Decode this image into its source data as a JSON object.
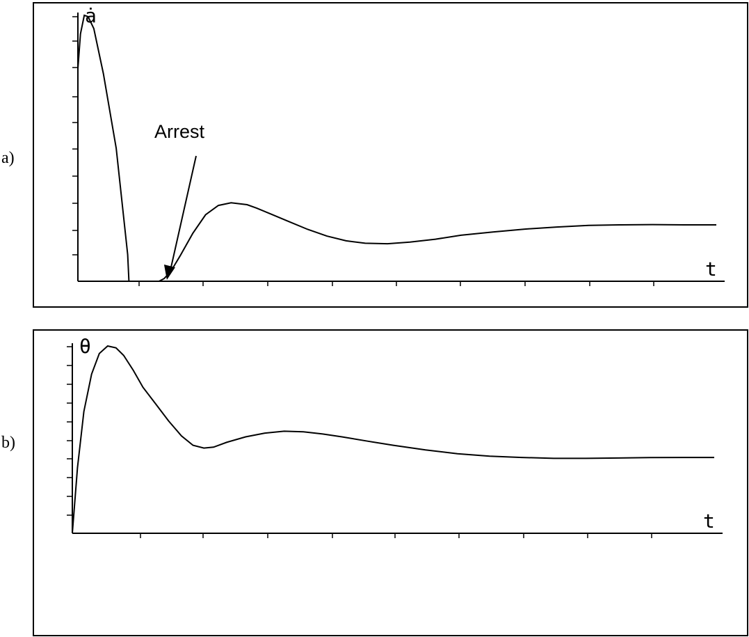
{
  "panels": [
    {
      "label": "a)"
    },
    {
      "label": "b)"
    }
  ],
  "chart_data": [
    {
      "type": "line",
      "ylabel": "ȧ",
      "xlabel": "t",
      "xlim": [
        0,
        10
      ],
      "ylim": [
        0,
        10
      ],
      "annotation": {
        "text": "Arrest",
        "x": 1.35,
        "y": 0
      },
      "series": [
        {
          "x": [
            0,
            0.04,
            0.1,
            0.16,
            0.25,
            0.4,
            0.6,
            0.78,
            0.8,
            1.27,
            1.35,
            1.45,
            1.6,
            1.8,
            2.0,
            2.2,
            2.4,
            2.65,
            2.8,
            3.0,
            3.3,
            3.6,
            3.9,
            4.2,
            4.5,
            4.85,
            5.2,
            5.6,
            6.0,
            6.5,
            7.0,
            7.5,
            8.0,
            8.5,
            9.0,
            9.5,
            10.0
          ],
          "y": [
            8.0,
            9.3,
            10.0,
            9.95,
            9.5,
            7.8,
            5.0,
            1.0,
            0,
            0,
            0.1,
            0.35,
            0.95,
            1.8,
            2.5,
            2.85,
            2.95,
            2.88,
            2.75,
            2.55,
            2.25,
            1.95,
            1.7,
            1.52,
            1.43,
            1.41,
            1.47,
            1.58,
            1.73,
            1.85,
            1.96,
            2.04,
            2.1,
            2.12,
            2.13,
            2.12,
            2.12
          ]
        }
      ]
    },
    {
      "type": "line",
      "ylabel": "θ",
      "xlabel": "t",
      "xlim": [
        0,
        10
      ],
      "ylim": [
        0,
        10
      ],
      "series": [
        {
          "x": [
            0,
            0.08,
            0.18,
            0.3,
            0.42,
            0.55,
            0.68,
            0.8,
            0.95,
            1.1,
            1.3,
            1.5,
            1.7,
            1.88,
            2.05,
            2.2,
            2.4,
            2.7,
            3.0,
            3.3,
            3.6,
            3.9,
            4.2,
            4.6,
            5.0,
            5.5,
            6.0,
            6.5,
            7.0,
            7.5,
            8.0,
            8.5,
            9.0,
            9.5,
            10.0
          ],
          "y": [
            0,
            3.5,
            6.5,
            8.5,
            9.6,
            10.0,
            9.9,
            9.5,
            8.7,
            7.8,
            6.9,
            6.0,
            5.2,
            4.7,
            4.55,
            4.6,
            4.85,
            5.15,
            5.35,
            5.45,
            5.42,
            5.3,
            5.15,
            4.92,
            4.7,
            4.45,
            4.25,
            4.12,
            4.05,
            4.0,
            4.0,
            4.02,
            4.04,
            4.05,
            4.05
          ]
        }
      ]
    }
  ]
}
